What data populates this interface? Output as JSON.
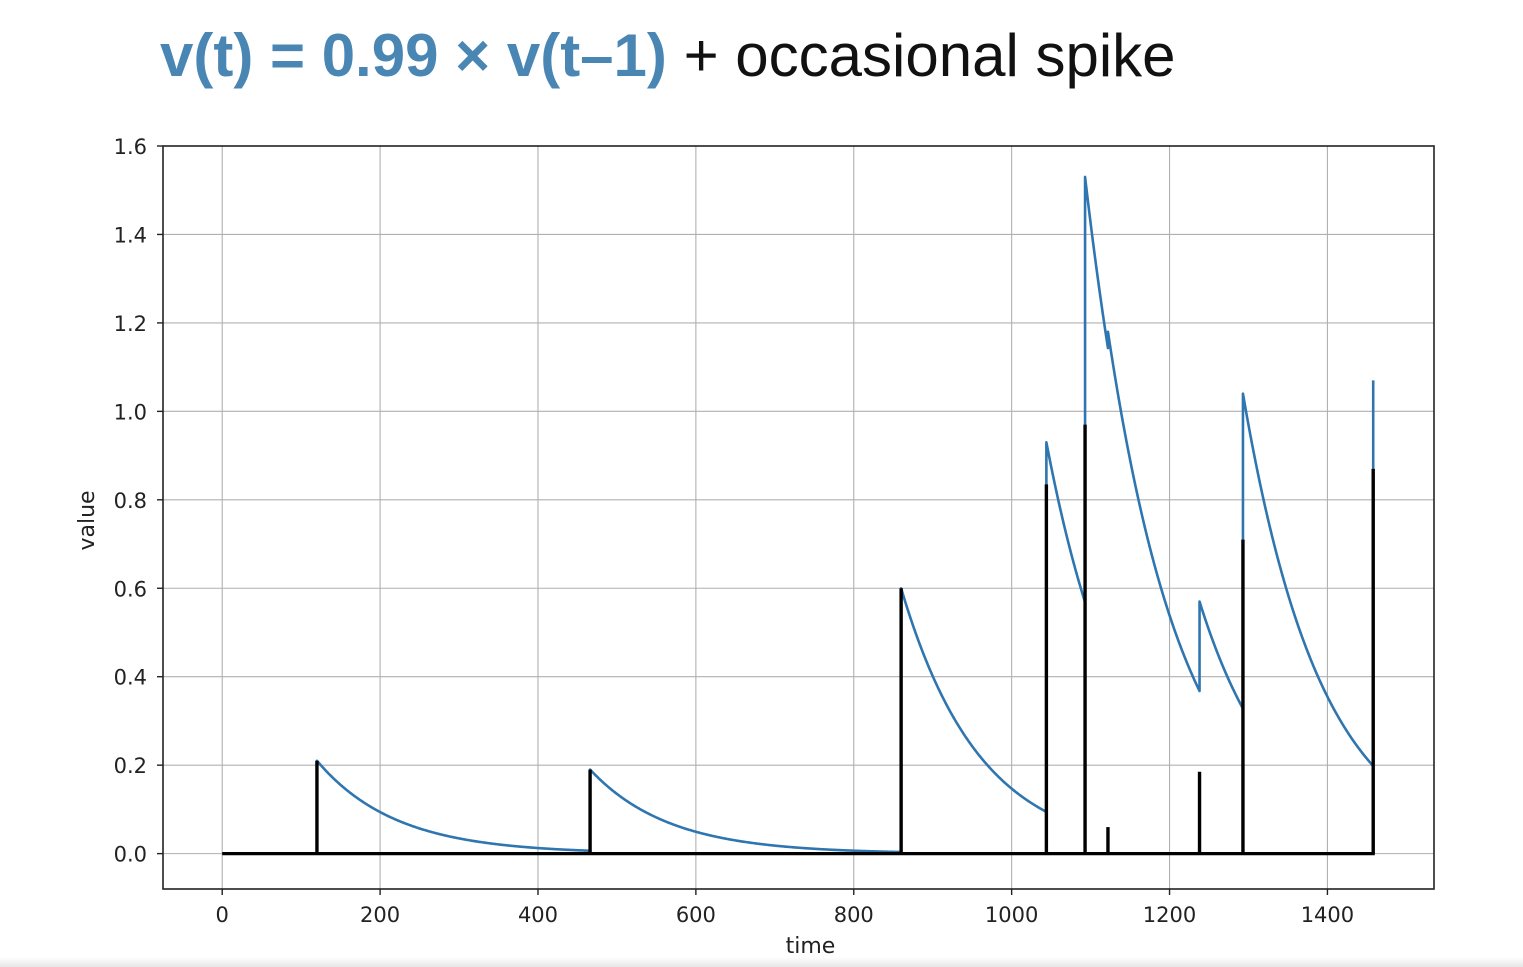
{
  "title": {
    "formula": "v(t) = 0.99 × v(t–1)",
    "rest": " + occasional spike",
    "formula_color": "#4a86b4"
  },
  "chart_data": {
    "type": "line",
    "xlabel": "time",
    "ylabel": "value",
    "xlim": [
      -75,
      1535
    ],
    "ylim": [
      -0.08,
      1.6
    ],
    "xticks": [
      0,
      200,
      400,
      600,
      800,
      1000,
      1200,
      1400
    ],
    "yticks": [
      0.0,
      0.2,
      0.4,
      0.6,
      0.8,
      1.0,
      1.2,
      1.4,
      1.6
    ],
    "xtick_labels": [
      "0",
      "200",
      "400",
      "600",
      "800",
      "1000",
      "1200",
      "1400"
    ],
    "ytick_labels": [
      "0.0",
      "0.2",
      "0.4",
      "0.6",
      "0.8",
      "1.0",
      "1.2",
      "1.4",
      "1.6"
    ],
    "grid": true,
    "decay": 0.99,
    "x_end": 1460,
    "series": [
      {
        "name": "v(t)",
        "color": "#2f76b0",
        "values_description_free": true,
        "points": [
          [
            0,
            0.0
          ],
          [
            120,
            0.0
          ],
          [
            120,
            0.21
          ],
          [
            466,
            0.007
          ],
          [
            466,
            0.19
          ],
          [
            860,
            0.004
          ],
          [
            860,
            0.6
          ],
          [
            1044,
            0.095
          ],
          [
            1044,
            0.93
          ],
          [
            1093,
            0.57
          ],
          [
            1093,
            1.53
          ],
          [
            1122,
            1.13
          ],
          [
            1122,
            1.18
          ],
          [
            1238,
            0.39
          ],
          [
            1238,
            0.57
          ],
          [
            1293,
            0.33
          ],
          [
            1293,
            1.04
          ],
          [
            1458,
            0.2
          ],
          [
            1458,
            1.07
          ]
        ]
      },
      {
        "name": "spike",
        "color": "#000000",
        "spikes": [
          [
            120,
            0.21
          ],
          [
            466,
            0.19
          ],
          [
            860,
            0.6
          ],
          [
            1044,
            0.835
          ],
          [
            1093,
            0.97
          ],
          [
            1122,
            0.06
          ],
          [
            1238,
            0.185
          ],
          [
            1293,
            0.71
          ],
          [
            1458,
            0.87
          ]
        ]
      }
    ]
  }
}
